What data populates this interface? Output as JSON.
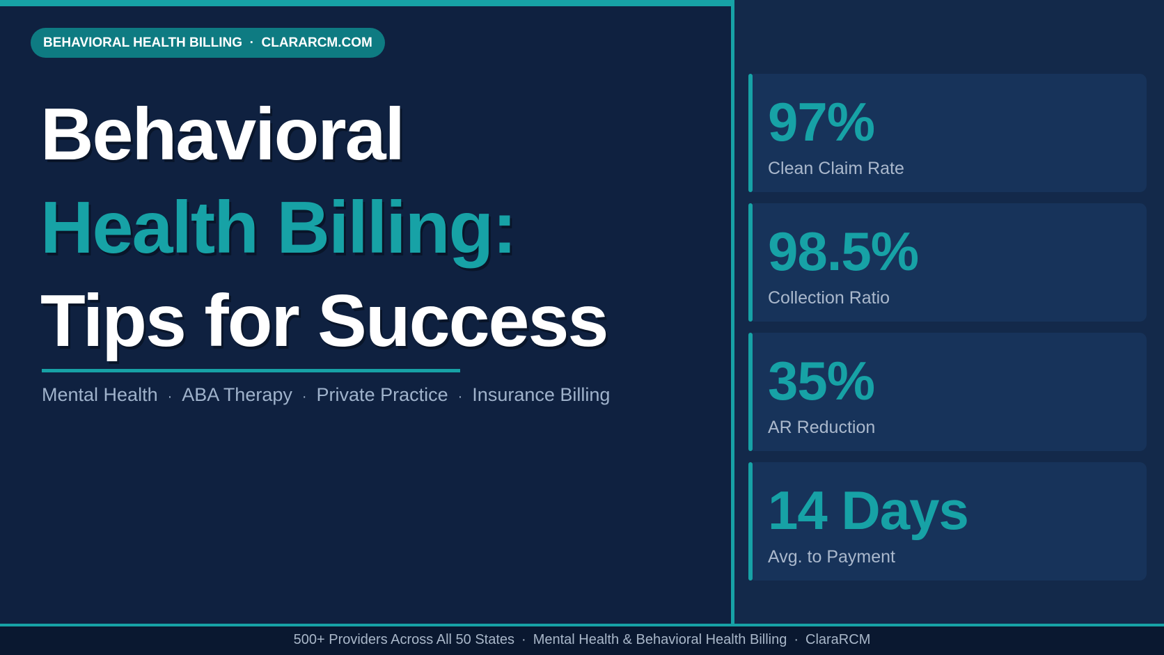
{
  "badge": "BEHAVIORAL HEALTH BILLING  ·  CLARARCM.COM",
  "title": {
    "line1": "Behavioral",
    "line2": "Health Billing:",
    "line3": "Tips for Success"
  },
  "separator": "·",
  "tags": [
    "Mental Health",
    "ABA Therapy",
    "Private Practice",
    "Insurance Billing"
  ],
  "stats": [
    {
      "value": "97%",
      "label": "Clean Claim Rate"
    },
    {
      "value": "98.5%",
      "label": "Collection Ratio"
    },
    {
      "value": "35%",
      "label": "AR Reduction"
    },
    {
      "value": "14 Days",
      "label": "Avg. to Payment"
    }
  ],
  "footer": [
    "500+ Providers Across All 50 States",
    "Mental Health & Behavioral Health Billing",
    "ClaraRCM"
  ]
}
